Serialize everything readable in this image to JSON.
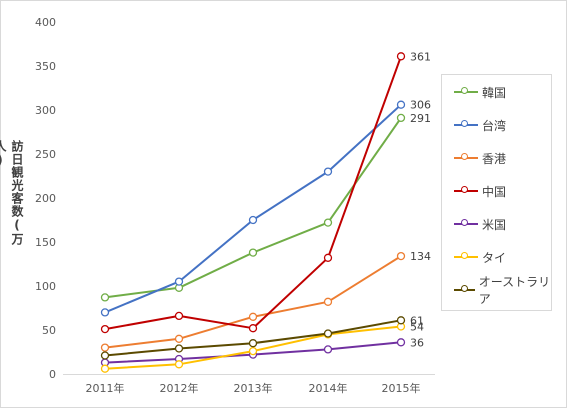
{
  "chart_data": {
    "type": "line",
    "title": "",
    "xlabel": "",
    "ylabel": "訪日観光客数(万人)",
    "categories": [
      "2011年",
      "2012年",
      "2013年",
      "2014年",
      "2015年"
    ],
    "ylim": [
      0,
      400
    ],
    "yticks": [
      0,
      50,
      100,
      150,
      200,
      250,
      300,
      350,
      400
    ],
    "grid": false,
    "legend_position": "right",
    "series": [
      {
        "name": "韓国",
        "color": "#70ad47",
        "values": [
          87,
          98,
          138,
          172,
          291
        ],
        "end_label": "291"
      },
      {
        "name": "台湾",
        "color": "#4472c4",
        "values": [
          70,
          105,
          175,
          230,
          306
        ],
        "end_label": "306"
      },
      {
        "name": "香港",
        "color": "#ed7d31",
        "values": [
          30,
          40,
          65,
          82,
          134
        ],
        "end_label": "134"
      },
      {
        "name": "中国",
        "color": "#c00000",
        "values": [
          51,
          66,
          52,
          132,
          361
        ],
        "end_label": "361"
      },
      {
        "name": "米国",
        "color": "#7030a0",
        "values": [
          13,
          17,
          22,
          28,
          36
        ],
        "end_label": "36"
      },
      {
        "name": "タイ",
        "color": "#ffc000",
        "values": [
          6,
          11,
          26,
          45,
          54
        ],
        "end_label": "54"
      },
      {
        "name": "オーストラリア",
        "color": "#5b4a00",
        "values": [
          21,
          29,
          35,
          46,
          61
        ],
        "end_label": "61"
      }
    ]
  }
}
